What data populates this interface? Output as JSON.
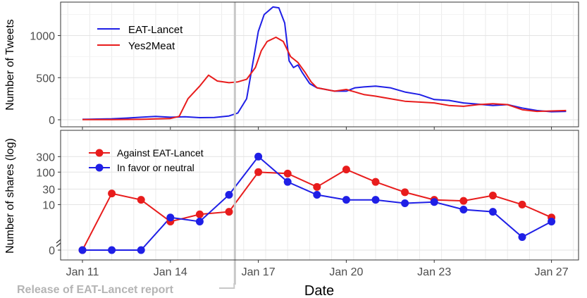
{
  "chart_data": [
    {
      "type": "line",
      "ylabel": "Number of Tweets",
      "ylim": [
        -30,
        1380
      ],
      "yticks": [
        "0",
        "500",
        "1000"
      ],
      "grid": true,
      "legend_position": "top-left",
      "colors": {
        "EAT-Lancet": "#1f1fe6",
        "Yes2Meat": "#e81c1c"
      },
      "series": [
        {
          "name": "EAT-Lancet",
          "points": [
            [
              11,
              5
            ],
            [
              11.5,
              8
            ],
            [
              12,
              12
            ],
            [
              12.5,
              20
            ],
            [
              13,
              30
            ],
            [
              13.5,
              40
            ],
            [
              14,
              30
            ],
            [
              14.5,
              35
            ],
            [
              15,
              25
            ],
            [
              15.5,
              28
            ],
            [
              16,
              45
            ],
            [
              16.3,
              80
            ],
            [
              16.6,
              250
            ],
            [
              16.8,
              650
            ],
            [
              17,
              1050
            ],
            [
              17.2,
              1250
            ],
            [
              17.5,
              1340
            ],
            [
              17.7,
              1330
            ],
            [
              17.9,
              1150
            ],
            [
              18.05,
              700
            ],
            [
              18.2,
              620
            ],
            [
              18.35,
              650
            ],
            [
              18.5,
              560
            ],
            [
              18.75,
              430
            ],
            [
              19,
              380
            ],
            [
              19.3,
              360
            ],
            [
              19.6,
              340
            ],
            [
              20,
              340
            ],
            [
              20.3,
              380
            ],
            [
              20.6,
              390
            ],
            [
              21,
              400
            ],
            [
              21.5,
              380
            ],
            [
              22,
              330
            ],
            [
              22.5,
              300
            ],
            [
              23,
              240
            ],
            [
              23.5,
              230
            ],
            [
              24,
              200
            ],
            [
              24.5,
              185
            ],
            [
              25,
              170
            ],
            [
              25.5,
              180
            ],
            [
              26,
              140
            ],
            [
              26.5,
              110
            ],
            [
              27,
              95
            ],
            [
              27.5,
              100
            ]
          ]
        },
        {
          "name": "Yes2Meat",
          "points": [
            [
              11,
              2
            ],
            [
              12,
              2
            ],
            [
              13,
              5
            ],
            [
              13.5,
              10
            ],
            [
              14,
              15
            ],
            [
              14.3,
              40
            ],
            [
              14.6,
              250
            ],
            [
              15,
              400
            ],
            [
              15.3,
              530
            ],
            [
              15.6,
              460
            ],
            [
              16,
              440
            ],
            [
              16.3,
              450
            ],
            [
              16.6,
              480
            ],
            [
              16.9,
              620
            ],
            [
              17.1,
              820
            ],
            [
              17.3,
              930
            ],
            [
              17.6,
              980
            ],
            [
              17.85,
              930
            ],
            [
              18.1,
              750
            ],
            [
              18.35,
              680
            ],
            [
              18.6,
              560
            ],
            [
              18.8,
              450
            ],
            [
              19,
              380
            ],
            [
              19.3,
              360
            ],
            [
              19.6,
              340
            ],
            [
              20,
              360
            ],
            [
              20.3,
              330
            ],
            [
              20.6,
              300
            ],
            [
              21,
              280
            ],
            [
              21.5,
              250
            ],
            [
              22,
              220
            ],
            [
              22.5,
              210
            ],
            [
              23,
              200
            ],
            [
              23.5,
              170
            ],
            [
              24,
              160
            ],
            [
              24.5,
              180
            ],
            [
              25,
              190
            ],
            [
              25.5,
              180
            ],
            [
              26,
              120
            ],
            [
              26.5,
              100
            ],
            [
              27,
              105
            ],
            [
              27.5,
              110
            ]
          ]
        }
      ]
    },
    {
      "type": "line",
      "ylabel": "Number of shares (log)",
      "yscale": "log",
      "yticks": [
        "0",
        "10",
        "30",
        "100",
        "300"
      ],
      "grid": true,
      "legend_position": "top-left",
      "markers": true,
      "colors": {
        "Against EAT-Lancet": "#e81c1c",
        "In favor or neutral": "#1f1fe6"
      },
      "x": [
        "Jan 11",
        "Jan 12",
        "Jan 13",
        "Jan 14",
        "Jan 15",
        "Jan 16",
        "Jan 17",
        "Jan 18",
        "Jan 19",
        "Jan 20",
        "Jan 21",
        "Jan 22",
        "Jan 23",
        "Jan 24",
        "Jan 25",
        "Jan 26",
        "Jan 27"
      ],
      "series": [
        {
          "name": "Against EAT-Lancet",
          "values": [
            0,
            22,
            14,
            3,
            5,
            6,
            100,
            90,
            35,
            120,
            50,
            24,
            14,
            13,
            19,
            10,
            4
          ]
        },
        {
          "name": "In favor or neutral",
          "values": [
            0,
            0,
            0,
            4,
            3,
            20,
            300,
            50,
            20,
            14,
            14,
            11,
            12,
            7,
            6,
            1,
            3
          ]
        }
      ]
    }
  ],
  "x_axis": {
    "label": "Date",
    "ticks": [
      "Jan 11",
      "Jan 14",
      "Jan 17",
      "Jan 20",
      "Jan 23",
      "Jan 27"
    ],
    "tick_days": [
      11,
      14,
      17,
      20,
      23,
      27
    ]
  },
  "annotation": {
    "label": "Release of EAT-Lancet report",
    "day": 16.2
  }
}
